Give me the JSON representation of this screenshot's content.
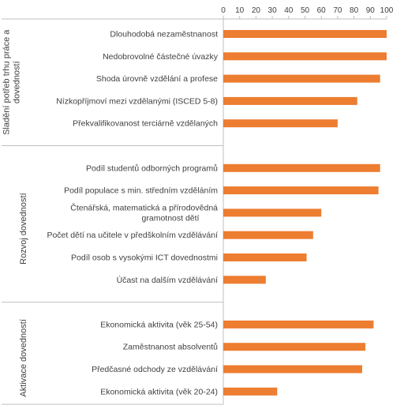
{
  "chart_data": {
    "type": "bar",
    "orientation": "horizontal",
    "xlim": [
      0,
      100
    ],
    "xticks": [
      "0",
      "10",
      "20",
      "30",
      "40",
      "50",
      "60",
      "70",
      "80",
      "90",
      "100"
    ],
    "x_axis_position": "top",
    "grid": false,
    "bar_color": "#ED7D31",
    "axis_color": "#BFBFBF",
    "groups": [
      {
        "name": "Sladění potřeb trhu práce a dovedností",
        "name_lines": [
          "Sladění potřeb trhu práce a",
          "dovedností"
        ],
        "categories": [
          {
            "label": [
              "Dlouhodobá nezaměstnanost"
            ],
            "value": 100
          },
          {
            "label": [
              "Nedobrovolné částečné úvazky"
            ],
            "value": 100
          },
          {
            "label": [
              "Shoda úrovně vzdělání a profese"
            ],
            "value": 96
          },
          {
            "label": [
              "Nízkopříjmoví mezi vzdělanými (ISCED 5-8)"
            ],
            "value": 82
          },
          {
            "label": [
              "Překvalifikovanost terciárně vzdělaných"
            ],
            "value": 70
          }
        ]
      },
      {
        "name": "Rozvoj dovedností",
        "name_lines": [
          "Rozvoj dovedností"
        ],
        "categories": [
          {
            "label": [
              "Podíl studentů odborných programů"
            ],
            "value": 96
          },
          {
            "label": [
              "Podíl populace s min. středním vzděláním"
            ],
            "value": 95
          },
          {
            "label": [
              "Čtenářská, matematická a přírodovědná",
              "gramotnost dětí"
            ],
            "value": 60
          },
          {
            "label": [
              "Počet dětí na učitele v předškolním vzdělávání"
            ],
            "value": 55
          },
          {
            "label": [
              "Podíl osob s vysokými ICT dovednostmi"
            ],
            "value": 51
          },
          {
            "label": [
              "Účast na dalším vzdělávání"
            ],
            "value": 26
          }
        ]
      },
      {
        "name": "Aktivace dovedností",
        "name_lines": [
          "Aktivace dovedností"
        ],
        "categories": [
          {
            "label": [
              "Ekonomická aktivita (věk 25-54)"
            ],
            "value": 92
          },
          {
            "label": [
              "Zaměstnanost absolventů"
            ],
            "value": 87
          },
          {
            "label": [
              "Předčasné odchody ze vzdělávání"
            ],
            "value": 85
          },
          {
            "label": [
              "Ekonomická aktivita (věk 20-24)"
            ],
            "value": 33
          }
        ]
      }
    ]
  }
}
